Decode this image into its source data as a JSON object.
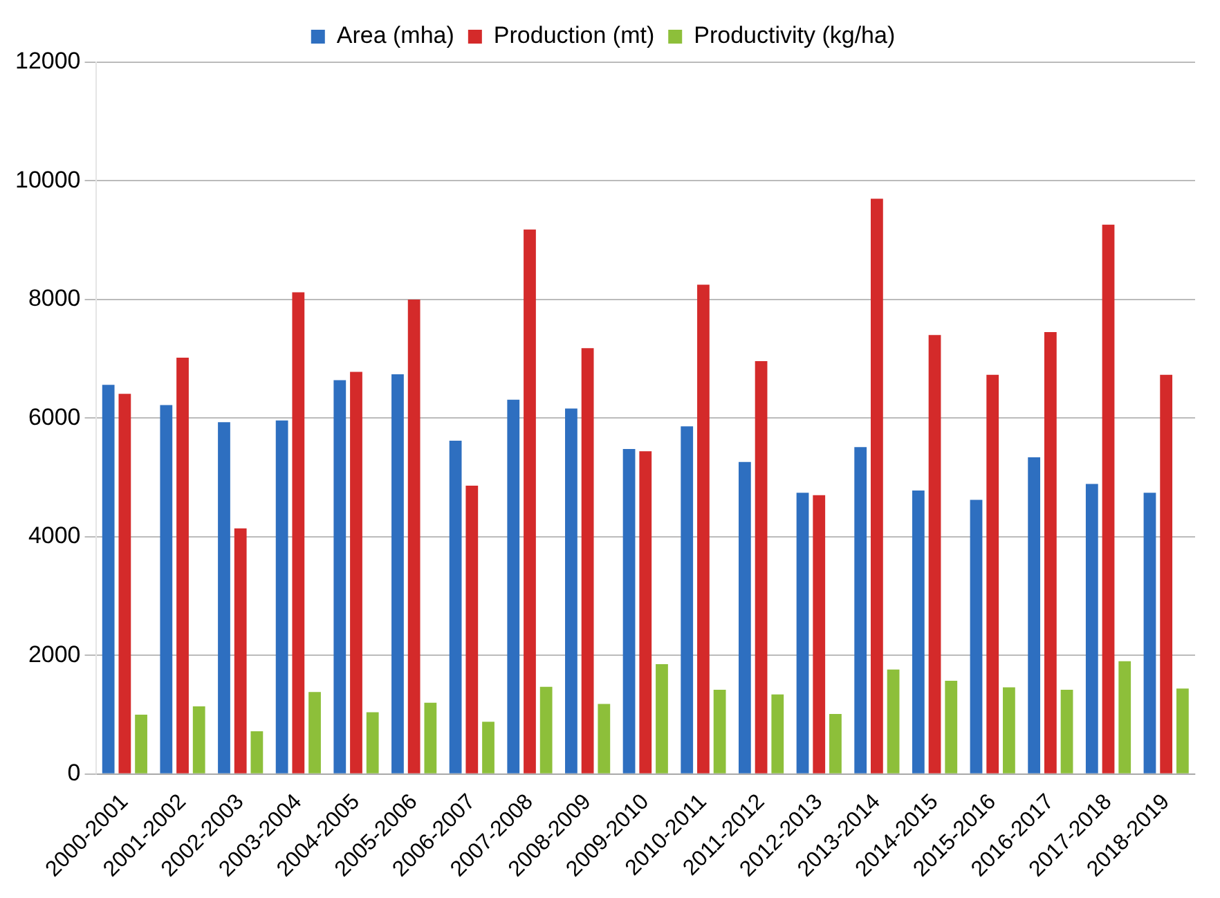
{
  "chart_data": {
    "type": "bar",
    "categories": [
      "2000-2001",
      "2001-2002",
      "2002-2003",
      "2003-2004",
      "2004-2005",
      "2005-2006",
      "2006-2007",
      "2007-2008",
      "2008-2009",
      "2009-2010",
      "2010-2011",
      "2011-2012",
      "2012-2013",
      "2013-2014",
      "2014-2015",
      "2015-2016",
      "2016-2017",
      "2017-2018",
      "2018-2019"
    ],
    "series": [
      {
        "name": "Area (mha)",
        "color": "#2e6fc0",
        "values": [
          6560,
          6220,
          5930,
          5960,
          6640,
          6740,
          5620,
          6310,
          6160,
          5480,
          5860,
          5260,
          4740,
          5510,
          4780,
          4620,
          5340,
          4890,
          4740
        ]
      },
      {
        "name": "Production (mt)",
        "color": "#d42a2a",
        "values": [
          6410,
          7020,
          4140,
          8120,
          6780,
          8000,
          4860,
          9180,
          7180,
          5440,
          8250,
          6960,
          4700,
          9700,
          7400,
          6730,
          7450,
          9260,
          6730
        ]
      },
      {
        "name": "Productivity (kg/ha)",
        "color": "#8dbf3a",
        "values": [
          1000,
          1140,
          720,
          1380,
          1040,
          1200,
          880,
          1470,
          1180,
          1850,
          1420,
          1340,
          1010,
          1760,
          1570,
          1460,
          1420,
          1900,
          1440
        ]
      }
    ],
    "ylim": [
      0,
      12000
    ],
    "yticks": [
      0,
      2000,
      4000,
      6000,
      8000,
      10000,
      12000
    ],
    "grid": "y",
    "legend": "top"
  }
}
